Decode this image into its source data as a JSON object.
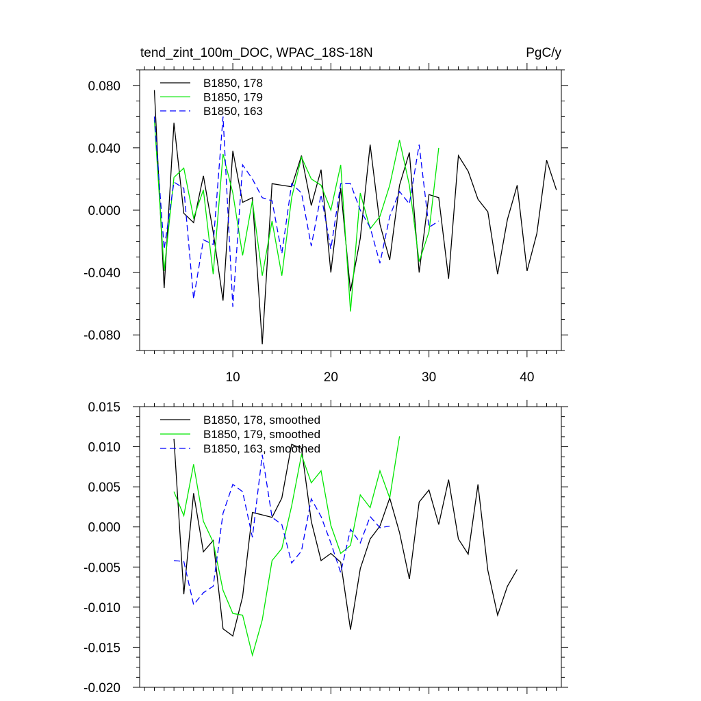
{
  "colors": {
    "s178": "#000000",
    "s179": "#00e600",
    "s163": "#0000ff"
  },
  "chart_data": [
    {
      "type": "line",
      "title": "tend_zint_100m_DOC, WPAC_18S-18N",
      "units": "PgC/y",
      "xlim": [
        0.5,
        43.5
      ],
      "ylim": [
        -0.09,
        0.09
      ],
      "xticks": [
        10,
        20,
        30,
        40
      ],
      "xtick_labels": [
        "10",
        "20",
        "30",
        "40"
      ],
      "yticks": [
        0.08,
        0.04,
        0.0,
        -0.04,
        -0.08
      ],
      "ytick_labels": [
        "0.080",
        "0.040",
        "0.000",
        "-0.040",
        "-0.080"
      ],
      "legend": [
        "B1850, 178",
        "B1850, 179",
        "B1850, 163"
      ],
      "series": [
        {
          "name": "B1850, 178",
          "color_key": "s178",
          "dash": "solid",
          "x_start": 2,
          "values": [
            0.077,
            -0.05,
            0.056,
            -0.002,
            -0.008,
            0.022,
            -0.014,
            -0.058,
            0.038,
            0.005,
            0.008,
            -0.086,
            0.017,
            0.016,
            0.015,
            0.035,
            0.003,
            0.026,
            -0.04,
            0.014,
            -0.052,
            -0.018,
            0.042,
            -0.009,
            -0.032,
            0.016,
            0.037,
            -0.04,
            0.01,
            0.008,
            -0.044,
            0.035,
            0.025,
            0.007,
            -0.001,
            -0.041,
            -0.006,
            0.016,
            -0.039,
            -0.015,
            0.032,
            0.013
          ]
        },
        {
          "name": "B1850, 179",
          "color_key": "s179",
          "dash": "solid",
          "x_start": 2,
          "values": [
            0.058,
            -0.039,
            0.021,
            0.027,
            -0.005,
            0.013,
            -0.041,
            0.036,
            0.011,
            -0.029,
            0.006,
            -0.042,
            -0.007,
            -0.042,
            0.008,
            0.034,
            0.02,
            0.016,
            0.0,
            0.029,
            -0.065,
            0.011,
            -0.012,
            -0.004,
            0.016,
            0.045,
            0.016,
            -0.033,
            -0.014,
            0.04
          ]
        },
        {
          "name": "B1850, 163",
          "color_key": "s163",
          "dash": "dashed",
          "x_start": 2,
          "values": [
            0.06,
            -0.025,
            0.018,
            0.014,
            -0.057,
            -0.019,
            -0.022,
            0.06,
            -0.062,
            0.029,
            0.02,
            0.008,
            0.006,
            -0.028,
            0.017,
            0.011,
            -0.023,
            0.01,
            -0.025,
            0.017,
            0.017,
            0.0,
            -0.011,
            -0.034,
            -0.004,
            0.012,
            0.004,
            0.042,
            -0.011,
            -0.007
          ]
        }
      ]
    },
    {
      "type": "line",
      "title": "",
      "xlim": [
        0.5,
        43.5
      ],
      "ylim": [
        -0.02,
        0.015
      ],
      "xticks": [
        10,
        20,
        30,
        40
      ],
      "yticks": [
        0.015,
        0.01,
        0.005,
        0.0,
        -0.005,
        -0.01,
        -0.015,
        -0.02
      ],
      "ytick_labels": [
        "0.015",
        "0.010",
        "0.005",
        "0.000",
        "-0.005",
        "-0.010",
        "-0.015",
        "-0.020"
      ],
      "legend": [
        "B1850, 178, smoothed",
        "B1850, 179, smoothed",
        "B1850, 163, smoothed"
      ],
      "series": [
        {
          "name": "B1850, 178, smoothed",
          "color_key": "s178",
          "dash": "solid",
          "x_start": 4,
          "values": [
            0.011,
            -0.0084,
            0.0042,
            -0.0031,
            -0.0017,
            -0.0127,
            -0.0136,
            -0.0087,
            0.0018,
            0.0015,
            0.0012,
            0.0036,
            0.0103,
            0.0098,
            0.0007,
            -0.0042,
            -0.0033,
            -0.0044,
            -0.0128,
            -0.0052,
            -0.0015,
            0.0001,
            0.0036,
            -0.0007,
            -0.0065,
            0.0031,
            0.0046,
            0.0003,
            0.0059,
            -0.0015,
            -0.0034,
            0.0053,
            -0.0054,
            -0.011,
            -0.0074,
            -0.0053
          ]
        },
        {
          "name": "B1850, 179, smoothed",
          "color_key": "s179",
          "dash": "solid",
          "x_start": 4,
          "values": [
            0.0044,
            0.0014,
            0.0078,
            0.0007,
            -0.0019,
            -0.0079,
            -0.0108,
            -0.011,
            -0.016,
            -0.0116,
            -0.0042,
            -0.0027,
            0.0026,
            0.009,
            0.0055,
            0.007,
            0.0002,
            -0.0033,
            -0.0023,
            0.004,
            0.0024,
            0.007,
            0.0036,
            0.0113
          ]
        },
        {
          "name": "B1850, 163, smoothed",
          "color_key": "s163",
          "dash": "dashed",
          "x_start": 4,
          "values": [
            -0.0042,
            -0.0043,
            -0.0097,
            -0.0082,
            -0.0074,
            0.0017,
            0.0053,
            0.0044,
            -0.0013,
            0.009,
            0.0012,
            0.0003,
            -0.0045,
            -0.003,
            0.0035,
            0.0013,
            -0.002,
            -0.0057,
            -0.0003,
            -0.002,
            0.0013,
            -0.0001,
            0.0001
          ]
        }
      ]
    }
  ]
}
